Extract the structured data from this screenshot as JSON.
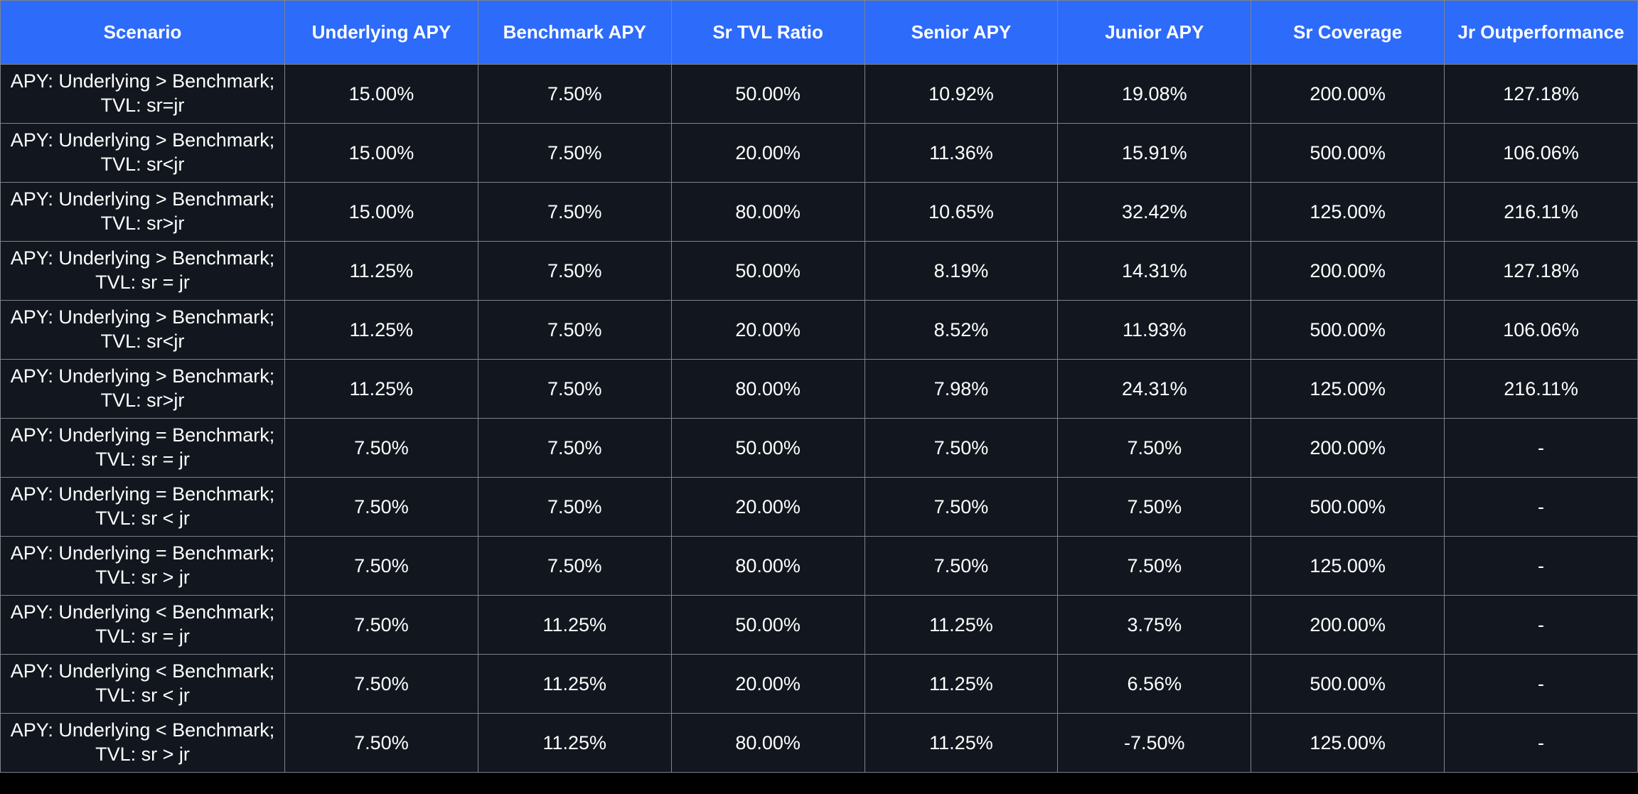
{
  "colors": {
    "header_background": "#2D6BFA",
    "body_background": "#12171F",
    "grid_line": "#7E838A",
    "text": "#FFFFFF",
    "page_background": "#000000"
  },
  "chart_data": {
    "type": "table",
    "columns": [
      "Scenario",
      "Underlying APY",
      "Benchmark APY",
      "Sr TVL Ratio",
      "Senior APY",
      "Junior APY",
      "Sr Coverage",
      "Jr Outperformance"
    ],
    "rows": [
      {
        "scenario": [
          "APY: Underlying > Benchmark;",
          "TVL: sr=jr"
        ],
        "cells": [
          "15.00%",
          "7.50%",
          "50.00%",
          "10.92%",
          "19.08%",
          "200.00%",
          "127.18%"
        ]
      },
      {
        "scenario": [
          "APY: Underlying > Benchmark;",
          "TVL: sr<jr"
        ],
        "cells": [
          "15.00%",
          "7.50%",
          "20.00%",
          "11.36%",
          "15.91%",
          "500.00%",
          "106.06%"
        ]
      },
      {
        "scenario": [
          "APY: Underlying > Benchmark;",
          "TVL: sr>jr"
        ],
        "cells": [
          "15.00%",
          "7.50%",
          "80.00%",
          "10.65%",
          "32.42%",
          "125.00%",
          "216.11%"
        ]
      },
      {
        "scenario": [
          "APY: Underlying > Benchmark;",
          "TVL: sr = jr"
        ],
        "cells": [
          "11.25%",
          "7.50%",
          "50.00%",
          "8.19%",
          "14.31%",
          "200.00%",
          "127.18%"
        ]
      },
      {
        "scenario": [
          "APY: Underlying > Benchmark;",
          "TVL: sr<jr"
        ],
        "cells": [
          "11.25%",
          "7.50%",
          "20.00%",
          "8.52%",
          "11.93%",
          "500.00%",
          "106.06%"
        ]
      },
      {
        "scenario": [
          "APY: Underlying > Benchmark;",
          "TVL: sr>jr"
        ],
        "cells": [
          "11.25%",
          "7.50%",
          "80.00%",
          "7.98%",
          "24.31%",
          "125.00%",
          "216.11%"
        ]
      },
      {
        "scenario": [
          "APY: Underlying = Benchmark;",
          "TVL: sr = jr"
        ],
        "cells": [
          "7.50%",
          "7.50%",
          "50.00%",
          "7.50%",
          "7.50%",
          "200.00%",
          "-"
        ]
      },
      {
        "scenario": [
          "APY: Underlying = Benchmark;",
          "TVL: sr < jr"
        ],
        "cells": [
          "7.50%",
          "7.50%",
          "20.00%",
          "7.50%",
          "7.50%",
          "500.00%",
          "-"
        ]
      },
      {
        "scenario": [
          "APY: Underlying = Benchmark;",
          "TVL: sr > jr"
        ],
        "cells": [
          "7.50%",
          "7.50%",
          "80.00%",
          "7.50%",
          "7.50%",
          "125.00%",
          "-"
        ]
      },
      {
        "scenario": [
          "APY: Underlying < Benchmark;",
          "TVL: sr = jr"
        ],
        "cells": [
          "7.50%",
          "11.25%",
          "50.00%",
          "11.25%",
          "3.75%",
          "200.00%",
          "-"
        ]
      },
      {
        "scenario": [
          "APY: Underlying < Benchmark;",
          "TVL: sr < jr"
        ],
        "cells": [
          "7.50%",
          "11.25%",
          "20.00%",
          "11.25%",
          "6.56%",
          "500.00%",
          "-"
        ]
      },
      {
        "scenario": [
          "APY: Underlying < Benchmark;",
          "TVL: sr > jr"
        ],
        "cells": [
          "7.50%",
          "11.25%",
          "80.00%",
          "11.25%",
          "-7.50%",
          "125.00%",
          "-"
        ]
      }
    ]
  }
}
